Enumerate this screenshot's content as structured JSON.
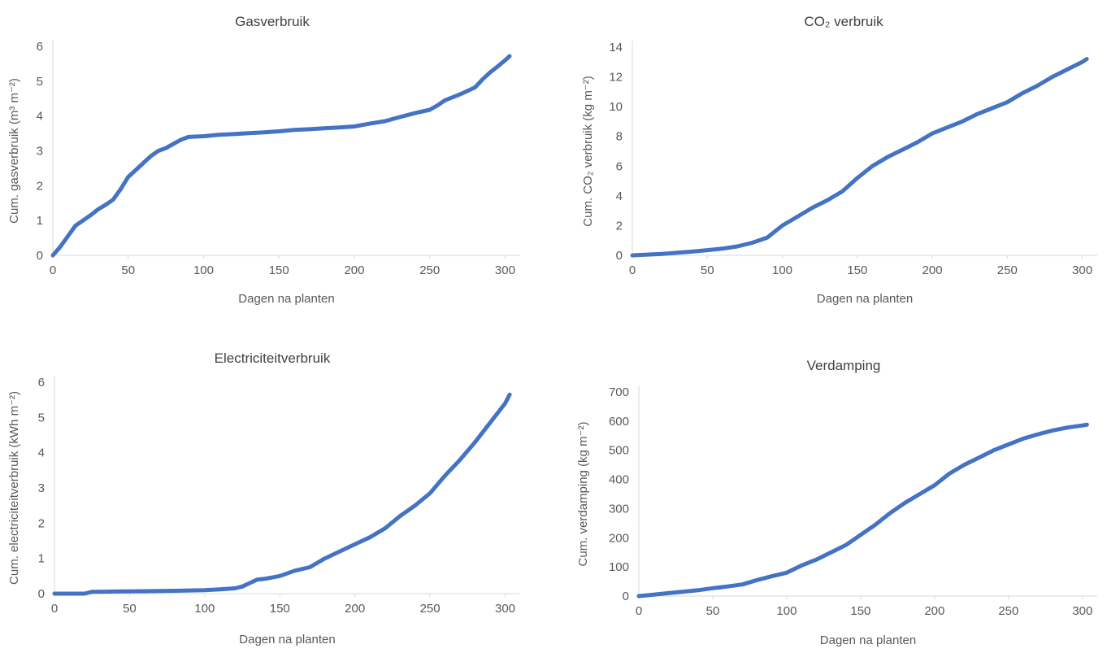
{
  "chart_data": [
    {
      "type": "line",
      "title": "Gasverbruik",
      "xlabel": "Dagen na planten",
      "ylabel": "Cum. gasverbruik (m³ m⁻²)",
      "xlim": [
        0,
        310
      ],
      "ylim": [
        0,
        6
      ],
      "xticks": [
        0,
        50,
        100,
        150,
        200,
        250,
        300
      ],
      "yticks": [
        0,
        1,
        2,
        3,
        4,
        5,
        6
      ],
      "grid": false,
      "legend": "none",
      "color": "#4472C4",
      "series": [
        {
          "x": [
            0,
            5,
            10,
            15,
            20,
            25,
            30,
            35,
            40,
            45,
            50,
            55,
            60,
            65,
            70,
            75,
            80,
            85,
            90,
            100,
            110,
            120,
            130,
            140,
            150,
            160,
            170,
            180,
            190,
            200,
            210,
            220,
            230,
            240,
            250,
            255,
            260,
            270,
            280,
            285,
            290,
            295,
            300,
            303
          ],
          "y": [
            0,
            0.25,
            0.55,
            0.85,
            1.0,
            1.15,
            1.32,
            1.45,
            1.6,
            1.9,
            2.25,
            2.45,
            2.65,
            2.85,
            3.0,
            3.08,
            3.2,
            3.32,
            3.4,
            3.42,
            3.46,
            3.48,
            3.51,
            3.53,
            3.56,
            3.6,
            3.62,
            3.65,
            3.67,
            3.7,
            3.78,
            3.85,
            3.97,
            4.08,
            4.18,
            4.3,
            4.45,
            4.62,
            4.82,
            5.05,
            5.25,
            5.42,
            5.6,
            5.72
          ]
        }
      ]
    },
    {
      "type": "line",
      "title": "CO₂ verbruik",
      "xlabel": "Dagen na planten",
      "ylabel": "Cum. CO₂ verbruik (kg m⁻²)",
      "xlim": [
        0,
        310
      ],
      "ylim": [
        0,
        14
      ],
      "xticks": [
        0,
        50,
        100,
        150,
        200,
        250,
        300
      ],
      "yticks": [
        0,
        2,
        4,
        6,
        8,
        10,
        12,
        14
      ],
      "grid": false,
      "legend": "none",
      "color": "#4472C4",
      "series": [
        {
          "x": [
            0,
            10,
            20,
            30,
            40,
            50,
            60,
            70,
            80,
            90,
            100,
            110,
            120,
            130,
            140,
            150,
            160,
            170,
            180,
            190,
            200,
            210,
            220,
            230,
            240,
            250,
            260,
            270,
            280,
            290,
            300,
            303
          ],
          "y": [
            0,
            0.05,
            0.1,
            0.18,
            0.25,
            0.35,
            0.45,
            0.6,
            0.85,
            1.2,
            2.0,
            2.6,
            3.2,
            3.7,
            4.3,
            5.2,
            6.0,
            6.6,
            7.1,
            7.6,
            8.2,
            8.6,
            9.0,
            9.5,
            9.9,
            10.3,
            10.9,
            11.4,
            12.0,
            12.5,
            13.0,
            13.2
          ]
        }
      ]
    },
    {
      "type": "line",
      "title": "Electriciteitverbruik",
      "xlabel": "Dagen na planten",
      "ylabel": "Cum. electriciteitverbruik (kWh m⁻²)",
      "xlim": [
        0,
        310
      ],
      "ylim": [
        0,
        6
      ],
      "xticks": [
        0,
        50,
        100,
        150,
        200,
        250,
        300
      ],
      "yticks": [
        0,
        1,
        2,
        3,
        4,
        5,
        6
      ],
      "grid": false,
      "legend": "none",
      "color": "#4472C4",
      "series": [
        {
          "x": [
            0,
            10,
            20,
            25,
            40,
            60,
            80,
            100,
            110,
            120,
            125,
            130,
            135,
            140,
            150,
            160,
            170,
            180,
            190,
            200,
            210,
            220,
            230,
            240,
            250,
            260,
            270,
            280,
            290,
            300,
            303
          ],
          "y": [
            0,
            0,
            0,
            0.05,
            0.06,
            0.07,
            0.08,
            0.1,
            0.12,
            0.15,
            0.2,
            0.3,
            0.4,
            0.42,
            0.5,
            0.65,
            0.75,
            1.0,
            1.2,
            1.4,
            1.6,
            1.85,
            2.2,
            2.5,
            2.85,
            3.35,
            3.8,
            4.3,
            4.85,
            5.4,
            5.65
          ]
        }
      ]
    },
    {
      "type": "line",
      "title": "Verdamping",
      "xlabel": "Dagen na planten",
      "ylabel": "Cum. verdamping (kg m⁻²)",
      "xlim": [
        0,
        310
      ],
      "ylim": [
        0,
        700
      ],
      "xticks": [
        0,
        50,
        100,
        150,
        200,
        250,
        300
      ],
      "yticks": [
        0,
        100,
        200,
        300,
        400,
        500,
        600,
        700
      ],
      "grid": false,
      "legend": "none",
      "color": "#4472C4",
      "series": [
        {
          "x": [
            0,
            10,
            20,
            30,
            40,
            50,
            60,
            70,
            80,
            90,
            100,
            110,
            120,
            130,
            140,
            150,
            160,
            170,
            180,
            190,
            200,
            210,
            220,
            230,
            240,
            250,
            260,
            270,
            280,
            290,
            300,
            303
          ],
          "y": [
            0,
            5,
            10,
            15,
            20,
            27,
            33,
            40,
            55,
            68,
            80,
            105,
            125,
            150,
            175,
            210,
            245,
            285,
            320,
            350,
            380,
            420,
            450,
            475,
            500,
            520,
            540,
            555,
            568,
            578,
            585,
            588
          ]
        }
      ]
    }
  ]
}
